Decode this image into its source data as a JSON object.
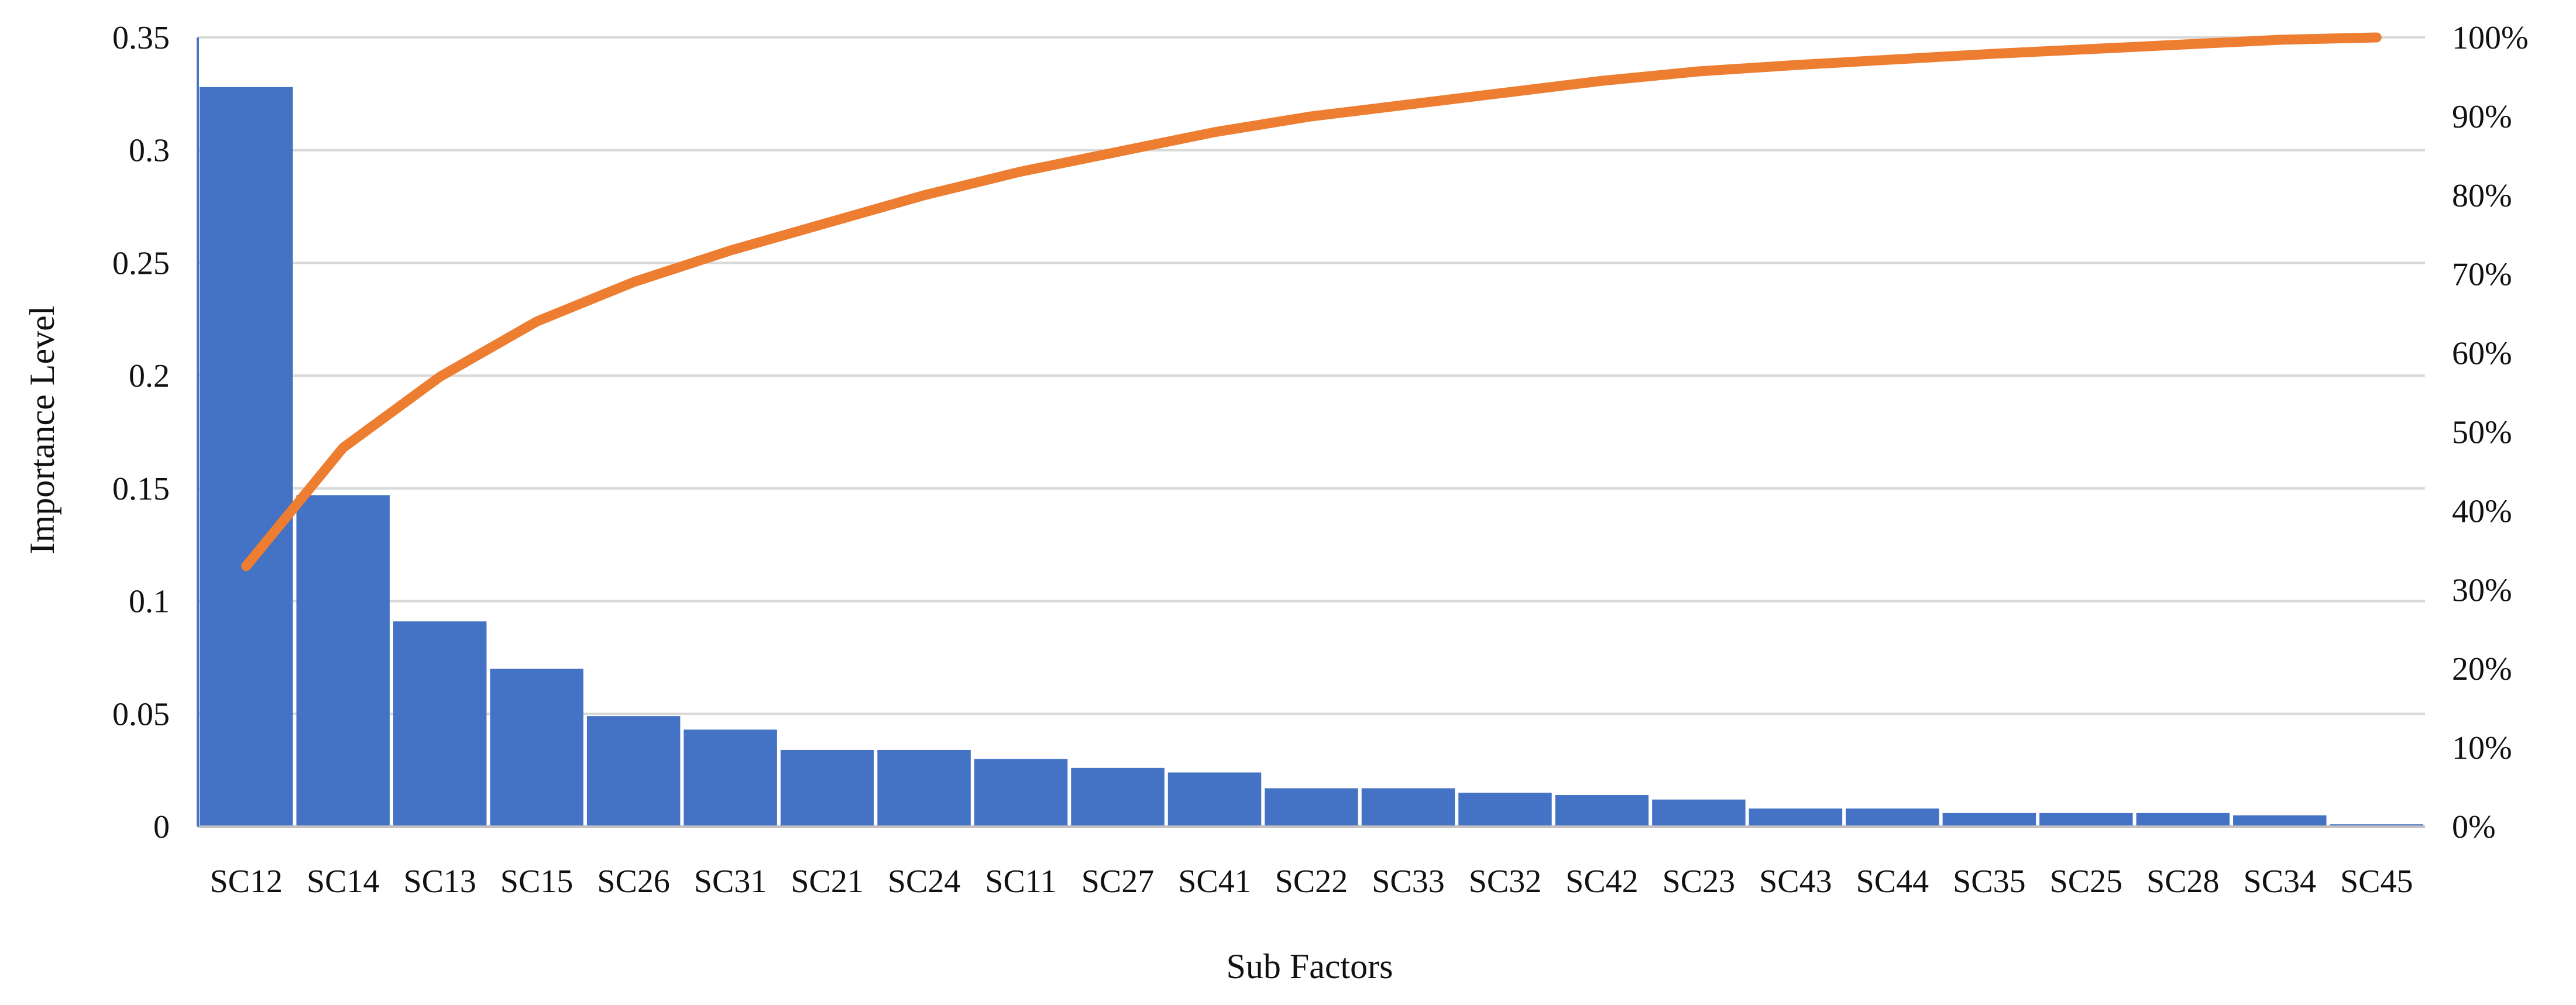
{
  "chart_data": {
    "type": "bar",
    "xlabel": "Sub Factors",
    "ylabel": "Importance Level",
    "ylim": [
      0,
      0.35
    ],
    "y_ticks": [
      "0",
      "0.05",
      "0.1",
      "0.15",
      "0.2",
      "0.25",
      "0.3",
      "0.35"
    ],
    "y2lim": [
      0,
      1
    ],
    "y2_ticks": [
      "0%",
      "10%",
      "20%",
      "30%",
      "40%",
      "50%",
      "60%",
      "70%",
      "80%",
      "90%",
      "100%"
    ],
    "grid": true,
    "legend": "none",
    "categories": [
      "SC12",
      "SC14",
      "SC13",
      "SC15",
      "SC26",
      "SC31",
      "SC21",
      "SC24",
      "SC11",
      "SC27",
      "SC41",
      "SC22",
      "SC33",
      "SC32",
      "SC42",
      "SC23",
      "SC43",
      "SC44",
      "SC35",
      "SC25",
      "SC28",
      "SC34",
      "SC45"
    ],
    "series": [
      {
        "type": "bar",
        "axis": "left",
        "color": "#4472C4",
        "values": [
          0.328,
          0.147,
          0.091,
          0.07,
          0.049,
          0.043,
          0.034,
          0.034,
          0.03,
          0.026,
          0.024,
          0.017,
          0.017,
          0.015,
          0.014,
          0.012,
          0.008,
          0.008,
          0.006,
          0.006,
          0.006,
          0.005,
          0.001
        ]
      },
      {
        "type": "line",
        "axis": "right",
        "color": "#ED7D31",
        "values": [
          0.33,
          0.48,
          0.57,
          0.64,
          0.69,
          0.73,
          0.765,
          0.8,
          0.83,
          0.855,
          0.88,
          0.9,
          0.915,
          0.93,
          0.945,
          0.957,
          0.965,
          0.972,
          0.979,
          0.985,
          0.991,
          0.997,
          1.0
        ]
      }
    ]
  }
}
